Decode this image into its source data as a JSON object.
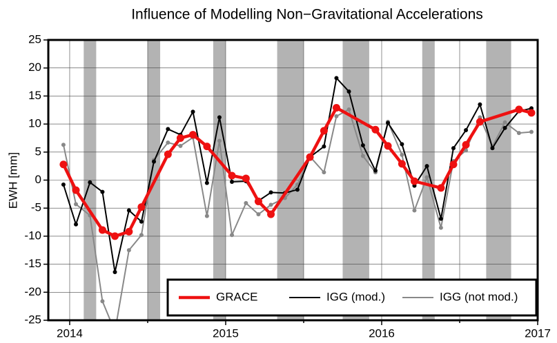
{
  "chart_data": {
    "type": "line",
    "title": "Influence of Modelling Non−Gravitational Accelerations",
    "y_label": "EWH [mm]",
    "xlim": [
      2013.863,
      2017.0
    ],
    "ylim": [
      -25,
      25
    ],
    "xticks": [
      2014,
      2015,
      2016,
      2017
    ],
    "x_minor_grid": [
      2014.5,
      2015.5,
      2016.5
    ],
    "yticks": [
      -25,
      -20,
      -15,
      -10,
      -5,
      0,
      5,
      10,
      15,
      20,
      25
    ],
    "grid": true,
    "legend": "lower right",
    "shaded_color": "#b3b3b3",
    "shaded_periods": [
      [
        2014.09,
        2014.17
      ],
      [
        2014.5,
        2014.58
      ],
      [
        2014.92,
        2015.0
      ],
      [
        2015.33,
        2015.5
      ],
      [
        2015.75,
        2015.92
      ],
      [
        2016.26,
        2016.34
      ],
      [
        2016.67,
        2016.83
      ]
    ],
    "series": [
      {
        "name": "GRACE",
        "color": "#ee1111",
        "x": [
          2013.96,
          2014.04,
          2014.21,
          2014.29,
          2014.38,
          2014.46,
          2014.63,
          2014.71,
          2014.79,
          2014.88,
          2015.04,
          2015.13,
          2015.21,
          2015.29,
          2015.54,
          2015.63,
          2015.71,
          2015.96,
          2016.04,
          2016.13,
          2016.21,
          2016.38,
          2016.46,
          2016.54,
          2016.63,
          2016.88,
          2016.96
        ],
        "values": [
          2.8,
          -1.8,
          -8.9,
          -10.0,
          -9.2,
          -4.8,
          4.6,
          7.5,
          8.1,
          6.0,
          0.8,
          0.3,
          -3.8,
          -6.1,
          4.1,
          8.8,
          12.9,
          9.0,
          6.1,
          2.9,
          -0.2,
          -1.4,
          2.8,
          6.3,
          10.4,
          12.6,
          12.0
        ]
      },
      {
        "name": "IGG (mod.)",
        "color": "#000000",
        "x": [
          2013.96,
          2014.04,
          2014.13,
          2014.21,
          2014.29,
          2014.38,
          2014.46,
          2014.54,
          2014.63,
          2014.71,
          2014.79,
          2014.88,
          2014.96,
          2015.04,
          2015.13,
          2015.21,
          2015.29,
          2015.38,
          2015.46,
          2015.54,
          2015.63,
          2015.71,
          2015.79,
          2015.88,
          2015.96,
          2016.04,
          2016.13,
          2016.21,
          2016.29,
          2016.38,
          2016.46,
          2016.54,
          2016.63,
          2016.71,
          2016.79,
          2016.88,
          2016.96
        ],
        "values": [
          -0.8,
          -7.9,
          -0.4,
          -2.1,
          -16.4,
          -5.4,
          -7.4,
          3.3,
          9.1,
          8.1,
          12.2,
          -0.5,
          11.2,
          -0.3,
          -0.2,
          -3.7,
          -2.2,
          -2.3,
          -1.7,
          4.1,
          6.0,
          18.2,
          15.8,
          6.2,
          1.7,
          10.2,
          6.4,
          -1.0,
          2.5,
          -6.9,
          5.7,
          8.9,
          13.5,
          5.7,
          9.3,
          12.3,
          12.8
        ]
      },
      {
        "name": "IGG (not mod.)",
        "color": "#888888",
        "x": [
          2013.96,
          2014.04,
          2014.13,
          2014.21,
          2014.29,
          2014.38,
          2014.46,
          2014.54,
          2014.63,
          2014.71,
          2014.79,
          2014.88,
          2014.96,
          2015.04,
          2015.13,
          2015.21,
          2015.29,
          2015.38,
          2015.46,
          2015.54,
          2015.63,
          2015.71,
          2015.79,
          2015.88,
          2015.96,
          2016.04,
          2016.13,
          2016.21,
          2016.29,
          2016.38,
          2016.46,
          2016.54,
          2016.63,
          2016.71,
          2016.79,
          2016.88,
          2016.96
        ],
        "values": [
          6.3,
          -4.3,
          -6.3,
          -21.6,
          -27.0,
          -12.5,
          -9.8,
          3.6,
          6.7,
          6.1,
          7.6,
          -6.4,
          7.0,
          -9.8,
          -4.1,
          -6.1,
          -4.4,
          -3.2,
          -0.8,
          4.2,
          1.4,
          11.4,
          12.6,
          4.3,
          1.4,
          10.4,
          4.5,
          -5.4,
          0.5,
          -8.5,
          3.4,
          5.3,
          11.2,
          6.0,
          10.3,
          8.4,
          8.6
        ]
      }
    ]
  }
}
